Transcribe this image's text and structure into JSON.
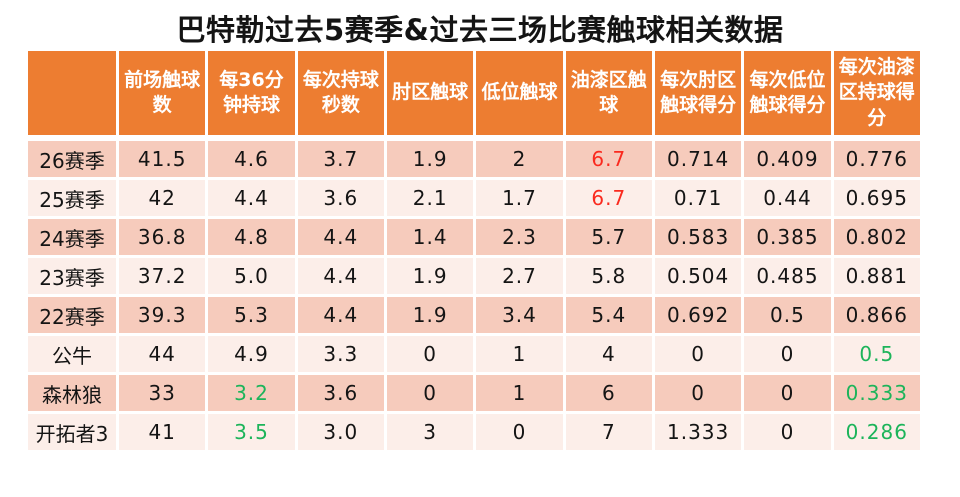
{
  "title": "巴特勒过去5赛季&过去三场比赛触球相关数据",
  "colors": {
    "header_bg": "#ED7D31",
    "row_band_dark": "#F6CBBC",
    "row_band_light": "#FCEEE9",
    "highlight_red": "#FA2A1E",
    "highlight_green": "#1CB45A",
    "header_text": "#FFFFFF",
    "body_text": "#141414"
  },
  "chart_data": {
    "type": "table",
    "title": "巴特勒过去5赛季&过去三场比赛触球相关数据",
    "columns": [
      "",
      "前场触球数",
      "每36分钟持球",
      "每次持球秒数",
      "肘区触球",
      "低位触球",
      "油漆区触球",
      "每次肘区触球得分",
      "每次低位触球得分",
      "每次油漆区持球得分"
    ],
    "rows": [
      {
        "label": "26赛季",
        "values": [
          "41.5",
          "4.6",
          "3.7",
          "1.9",
          "2",
          "6.7",
          "0.714",
          "0.409",
          "0.776"
        ],
        "highlights": {
          "5": "red"
        }
      },
      {
        "label": "25赛季",
        "values": [
          "42",
          "4.4",
          "3.6",
          "2.1",
          "1.7",
          "6.7",
          "0.71",
          "0.44",
          "0.695"
        ],
        "highlights": {
          "5": "red"
        }
      },
      {
        "label": "24赛季",
        "values": [
          "36.8",
          "4.8",
          "4.4",
          "1.4",
          "2.3",
          "5.7",
          "0.583",
          "0.385",
          "0.802"
        ],
        "highlights": {}
      },
      {
        "label": "23赛季",
        "values": [
          "37.2",
          "5.0",
          "4.4",
          "1.9",
          "2.7",
          "5.8",
          "0.504",
          "0.485",
          "0.881"
        ],
        "highlights": {}
      },
      {
        "label": "22赛季",
        "values": [
          "39.3",
          "5.3",
          "4.4",
          "1.9",
          "3.4",
          "5.4",
          "0.692",
          "0.5",
          "0.866"
        ],
        "highlights": {}
      },
      {
        "label": "公牛",
        "values": [
          "44",
          "4.9",
          "3.3",
          "0",
          "1",
          "4",
          "0",
          "0",
          "0.5"
        ],
        "highlights": {
          "8": "green"
        }
      },
      {
        "label": "森林狼",
        "values": [
          "33",
          "3.2",
          "3.6",
          "0",
          "1",
          "6",
          "0",
          "0",
          "0.333"
        ],
        "highlights": {
          "1": "green",
          "8": "green"
        }
      },
      {
        "label": "开拓者3",
        "values": [
          "41",
          "3.5",
          "3.0",
          "3",
          "0",
          "7",
          "1.333",
          "0",
          "0.286"
        ],
        "highlights": {
          "1": "green",
          "8": "green"
        }
      }
    ]
  }
}
